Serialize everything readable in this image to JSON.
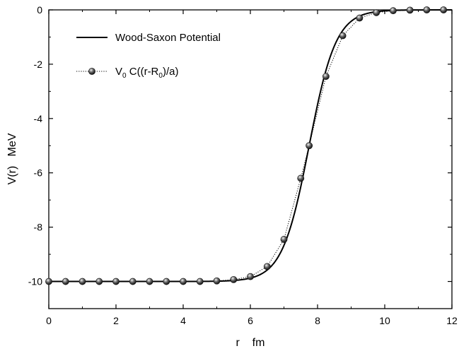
{
  "chart_data": {
    "type": "line",
    "title": "",
    "xlabel": "r    fm",
    "ylabel": "V(r)   MeV",
    "xlim": [
      0,
      12
    ],
    "ylim": [
      -11,
      0
    ],
    "x_ticks": [
      0,
      2,
      4,
      6,
      8,
      10,
      12
    ],
    "y_ticks": [
      0,
      -2,
      -4,
      -6,
      -8,
      -10
    ],
    "x_tick_labels": [
      "0",
      "2",
      "4",
      "6",
      "8",
      "10",
      "12"
    ],
    "y_tick_labels": [
      "0",
      "-2",
      "-4",
      "-6",
      "-8",
      "-10"
    ],
    "grid": false,
    "legend_position": "top-left",
    "potential": {
      "V0": -10,
      "R0": 7.75,
      "a": 0.4
    },
    "series": [
      {
        "name": "Wood-Saxon Potential",
        "style": "solid-line",
        "color": "#000000"
      },
      {
        "name_parts": {
          "v": "V",
          "v_sub": "0",
          "mid": " C((r-R",
          "r_sub": "0",
          "end": ")/a)"
        },
        "style": "dotted-line-with-spheres",
        "color": "#000000",
        "x": [
          0,
          0.5,
          1,
          1.5,
          2,
          2.5,
          3,
          3.5,
          4,
          4.5,
          5,
          5.5,
          6,
          6.5,
          7,
          7.5,
          7.75,
          8.25,
          8.75,
          9.25,
          9.75,
          10.25,
          10.75,
          11.25,
          11.75
        ],
        "y": [
          -10,
          -10,
          -10,
          -10,
          -10,
          -10,
          -10,
          -10,
          -10,
          -10,
          -9.98,
          -9.93,
          -9.82,
          -9.45,
          -8.45,
          -6.2,
          -5.0,
          -2.45,
          -0.95,
          -0.3,
          -0.1,
          -0.03,
          -0.01,
          0,
          0
        ]
      }
    ]
  }
}
